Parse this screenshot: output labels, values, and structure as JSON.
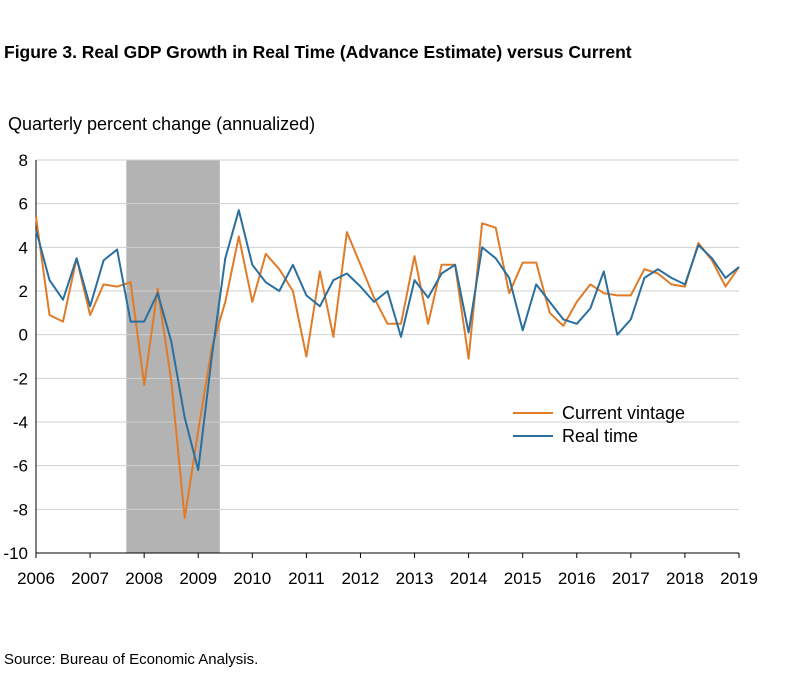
{
  "chart_data": {
    "type": "line",
    "title": "Figure 3. Real GDP Growth in Real Time (Advance Estimate) versus Current",
    "ylabel": "Quarterly percent change (annualized)",
    "xlabel": "",
    "ylim": [
      -10,
      8
    ],
    "xlim": [
      2006,
      2019
    ],
    "y_ticks": [
      8,
      6,
      4,
      2,
      0,
      -2,
      -4,
      -6,
      -8,
      -10
    ],
    "x_ticks": [
      2006,
      2007,
      2008,
      2009,
      2010,
      2011,
      2012,
      2013,
      2014,
      2015,
      2016,
      2017,
      2018,
      2019
    ],
    "grid": "horizontal",
    "legend_position": "right",
    "recession_shading": {
      "start": 2007.67,
      "end": 2009.4,
      "color": "#b3b3b3"
    },
    "source": "Source: Bureau of Economic Analysis.",
    "series": [
      {
        "name": "Current vintage",
        "color": "#e07b28",
        "x": [
          2006.0,
          2006.25,
          2006.5,
          2006.75,
          2007.0,
          2007.25,
          2007.5,
          2007.75,
          2008.0,
          2008.25,
          2008.5,
          2008.75,
          2009.0,
          2009.25,
          2009.5,
          2009.75,
          2010.0,
          2010.25,
          2010.5,
          2010.75,
          2011.0,
          2011.25,
          2011.5,
          2011.75,
          2012.0,
          2012.25,
          2012.5,
          2012.75,
          2013.0,
          2013.25,
          2013.5,
          2013.75,
          2014.0,
          2014.25,
          2014.5,
          2014.75,
          2015.0,
          2015.25,
          2015.5,
          2015.75,
          2016.0,
          2016.25,
          2016.5,
          2016.75,
          2017.0,
          2017.25,
          2017.5,
          2017.75,
          2018.0,
          2018.25,
          2018.5,
          2018.75,
          2019.0
        ],
        "y": [
          5.4,
          0.9,
          0.6,
          3.5,
          0.9,
          2.3,
          2.2,
          2.4,
          -2.3,
          2.1,
          -2.1,
          -8.4,
          -4.4,
          -0.6,
          1.5,
          4.5,
          1.5,
          3.7,
          3.0,
          2.0,
          -1.0,
          2.9,
          -0.1,
          4.7,
          3.2,
          1.7,
          0.5,
          0.5,
          3.6,
          0.5,
          3.2,
          3.2,
          -1.1,
          5.1,
          4.9,
          1.9,
          3.3,
          3.3,
          1.0,
          0.4,
          1.5,
          2.3,
          1.9,
          1.8,
          1.8,
          3.0,
          2.8,
          2.3,
          2.2,
          4.2,
          3.4,
          2.2,
          3.1
        ]
      },
      {
        "name": "Real time",
        "color": "#2a6f9e",
        "x": [
          2006.0,
          2006.25,
          2006.5,
          2006.75,
          2007.0,
          2007.25,
          2007.5,
          2007.75,
          2008.0,
          2008.25,
          2008.5,
          2008.75,
          2009.0,
          2009.25,
          2009.5,
          2009.75,
          2010.0,
          2010.25,
          2010.5,
          2010.75,
          2011.0,
          2011.25,
          2011.5,
          2011.75,
          2012.0,
          2012.25,
          2012.5,
          2012.75,
          2013.0,
          2013.25,
          2013.5,
          2013.75,
          2014.0,
          2014.25,
          2014.5,
          2014.75,
          2015.0,
          2015.25,
          2015.5,
          2015.75,
          2016.0,
          2016.25,
          2016.5,
          2016.75,
          2017.0,
          2017.25,
          2017.5,
          2017.75,
          2018.0,
          2018.25,
          2018.5,
          2018.75,
          2019.0
        ],
        "y": [
          4.8,
          2.5,
          1.6,
          3.5,
          1.3,
          3.4,
          3.9,
          0.6,
          0.6,
          1.9,
          -0.3,
          -3.8,
          -6.2,
          -1.0,
          3.5,
          5.7,
          3.2,
          2.4,
          2.0,
          3.2,
          1.8,
          1.3,
          2.5,
          2.8,
          2.2,
          1.5,
          2.0,
          -0.1,
          2.5,
          1.7,
          2.8,
          3.2,
          0.1,
          4.0,
          3.5,
          2.6,
          0.2,
          2.3,
          1.5,
          0.7,
          0.5,
          1.2,
          2.9,
          0.0,
          0.7,
          2.6,
          3.0,
          2.6,
          2.3,
          4.1,
          3.5,
          2.6,
          3.1
        ]
      }
    ]
  }
}
